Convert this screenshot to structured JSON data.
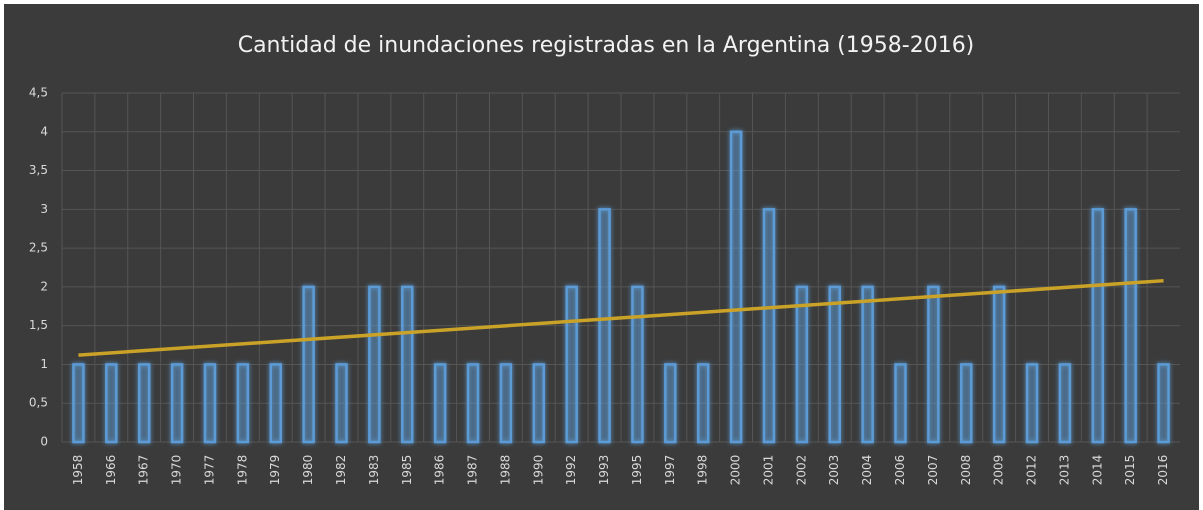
{
  "chart_data": {
    "type": "bar",
    "title": "Cantidad de inundaciones registradas en la Argentina (1958-2016)",
    "categories": [
      "1958",
      "1966",
      "1967",
      "1970",
      "1977",
      "1978",
      "1979",
      "1980",
      "1982",
      "1983",
      "1985",
      "1986",
      "1987",
      "1988",
      "1990",
      "1992",
      "1993",
      "1995",
      "1997",
      "1998",
      "2000",
      "2001",
      "2002",
      "2003",
      "2004",
      "2006",
      "2007",
      "2008",
      "2009",
      "2012",
      "2013",
      "2014",
      "2015",
      "2016"
    ],
    "values": [
      1,
      1,
      1,
      1,
      1,
      1,
      1,
      2,
      1,
      2,
      2,
      1,
      1,
      1,
      1,
      2,
      3,
      2,
      1,
      1,
      4,
      3,
      2,
      2,
      2,
      1,
      2,
      1,
      2,
      1,
      1,
      3,
      3,
      1
    ],
    "color": "#5b9bd5",
    "ylim": [
      0,
      4.5
    ],
    "yticks": [
      0,
      {
        "value": 0.5,
        "label": "0,5"
      },
      1,
      {
        "value": 1.5,
        "label": "1,5"
      },
      2,
      {
        "value": 2.5,
        "label": "2,5"
      },
      3,
      {
        "value": 3.5,
        "label": "3,5"
      },
      4,
      {
        "value": 4.5,
        "label": "4,5"
      }
    ],
    "grid": true,
    "trendline": {
      "color": "#c9a227",
      "start": 1.12,
      "end": 2.08
    }
  }
}
